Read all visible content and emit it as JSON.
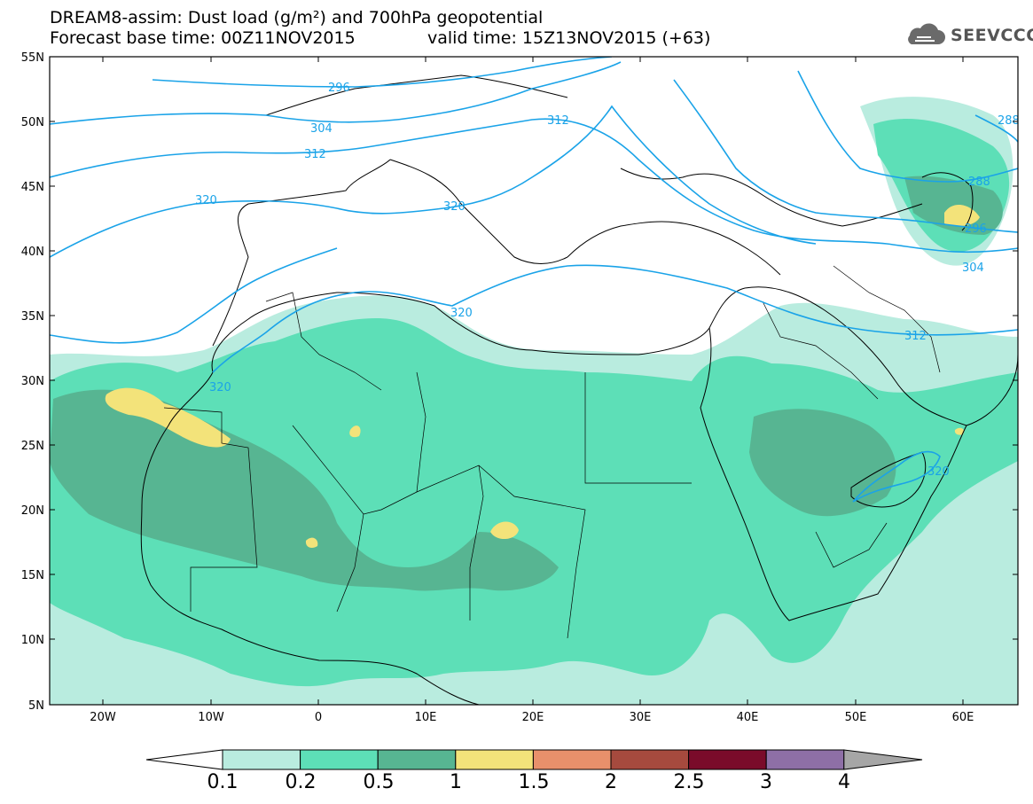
{
  "header": {
    "title_line1": "DREAM8-assim: Dust load (g/m²) and 700hPa geopotential",
    "title_line2": "Forecast base time: 00Z11NOV2015",
    "valid_time": "valid time: 15Z13NOV2015 (+63)",
    "logo_text": "SEEVCCC",
    "logo_icon": "cloud-icon"
  },
  "map": {
    "lat_labels": [
      "55N",
      "50N",
      "45N",
      "40N",
      "35N",
      "30N",
      "25N",
      "20N",
      "15N",
      "10N",
      "5N"
    ],
    "lon_labels": [
      "20W",
      "10W",
      "0",
      "10E",
      "20E",
      "30E",
      "40E",
      "50E",
      "60E"
    ],
    "contour_labels": [
      "296",
      "304",
      "312",
      "312",
      "320",
      "320",
      "320",
      "320",
      "288",
      "296",
      "304",
      "312",
      "320",
      "288"
    ]
  },
  "colorbar": {
    "levels": [
      "0.1",
      "0.2",
      "0.5",
      "1",
      "1.5",
      "2",
      "2.5",
      "3",
      "4"
    ],
    "colors": [
      "#ffffff",
      "#b9ecdf",
      "#5ddfb7",
      "#57b592",
      "#f3e37a",
      "#e8906b",
      "#a64a3e",
      "#7a0b2a",
      "#8e6fa6",
      "#a6a6a6"
    ]
  }
}
